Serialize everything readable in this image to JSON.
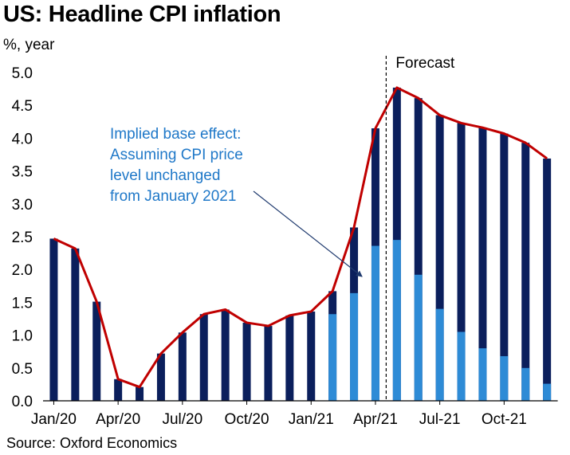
{
  "title": "US: Headline CPI inflation",
  "source": "Source: Oxford Economics",
  "chart_data": {
    "type": "bar",
    "title": "US: Headline CPI inflation",
    "ylabel": "%, year",
    "ylim": [
      0,
      5
    ],
    "yticks": [
      "0.0",
      "0.5",
      "1.0",
      "1.5",
      "2.0",
      "2.5",
      "3.0",
      "3.5",
      "4.0",
      "4.5",
      "5.0"
    ],
    "categories": [
      "Jan/20",
      "Feb/20",
      "Mar/20",
      "Apr/20",
      "May/20",
      "Jun/20",
      "Jul/20",
      "Aug/20",
      "Sep/20",
      "Oct/20",
      "Nov/20",
      "Dec/20",
      "Jan/21",
      "Feb/21",
      "Mar/21",
      "Apr/21",
      "May/21",
      "Jun/21",
      "Jul/21",
      "Aug/21",
      "Sep/21",
      "Oct/21",
      "Nov/21",
      "Dec/21"
    ],
    "xtick_labels": [
      {
        "index": 0,
        "label": "Jan/20"
      },
      {
        "index": 3,
        "label": "Apr/20"
      },
      {
        "index": 6,
        "label": "Jul/20"
      },
      {
        "index": 9,
        "label": "Oct/20"
      },
      {
        "index": 12,
        "label": "Jan/21"
      },
      {
        "index": 15,
        "label": "Apr/21"
      },
      {
        "index": 18,
        "label": "Jul-21"
      },
      {
        "index": 21,
        "label": "Oct-21"
      }
    ],
    "series": [
      {
        "values": [
          2.47,
          2.32,
          1.51,
          0.33,
          0.21,
          0.72,
          1.04,
          1.32,
          1.39,
          1.19,
          1.14,
          1.3,
          1.36,
          1.67,
          2.64,
          4.15,
          4.77,
          4.61,
          4.35,
          4.23,
          4.16,
          4.07,
          3.93,
          3.69
        ]
      },
      {
        "values": [
          0,
          0,
          0,
          0,
          0,
          0,
          0,
          0,
          0,
          0,
          0,
          0,
          0,
          1.32,
          1.64,
          2.36,
          2.45,
          1.92,
          1.4,
          1.05,
          0.8,
          0.68,
          0.5,
          0.26
        ]
      },
      {
        "values": [
          2.47,
          2.32,
          1.51,
          0.33,
          0.21,
          0.72,
          1.04,
          1.32,
          1.39,
          1.19,
          1.14,
          1.3,
          1.36,
          1.67,
          2.64,
          4.15,
          4.77,
          4.61,
          4.35,
          4.23,
          4.16,
          4.07,
          3.93,
          3.69
        ]
      }
    ],
    "forecast_label": "Forecast",
    "forecast_start_index": 15.5,
    "annotation": {
      "lines": [
        "Implied base effect:",
        "Assuming CPI price",
        "level unchanged",
        "from January 2021"
      ],
      "points_to_index": 14
    },
    "colors": {
      "bars": "#0b1f5c",
      "base_effect": "#2e8bd6",
      "line": "#c00000",
      "annotation_text": "#1f78c8",
      "arrow": "#1f3a6e"
    },
    "grid": false
  }
}
